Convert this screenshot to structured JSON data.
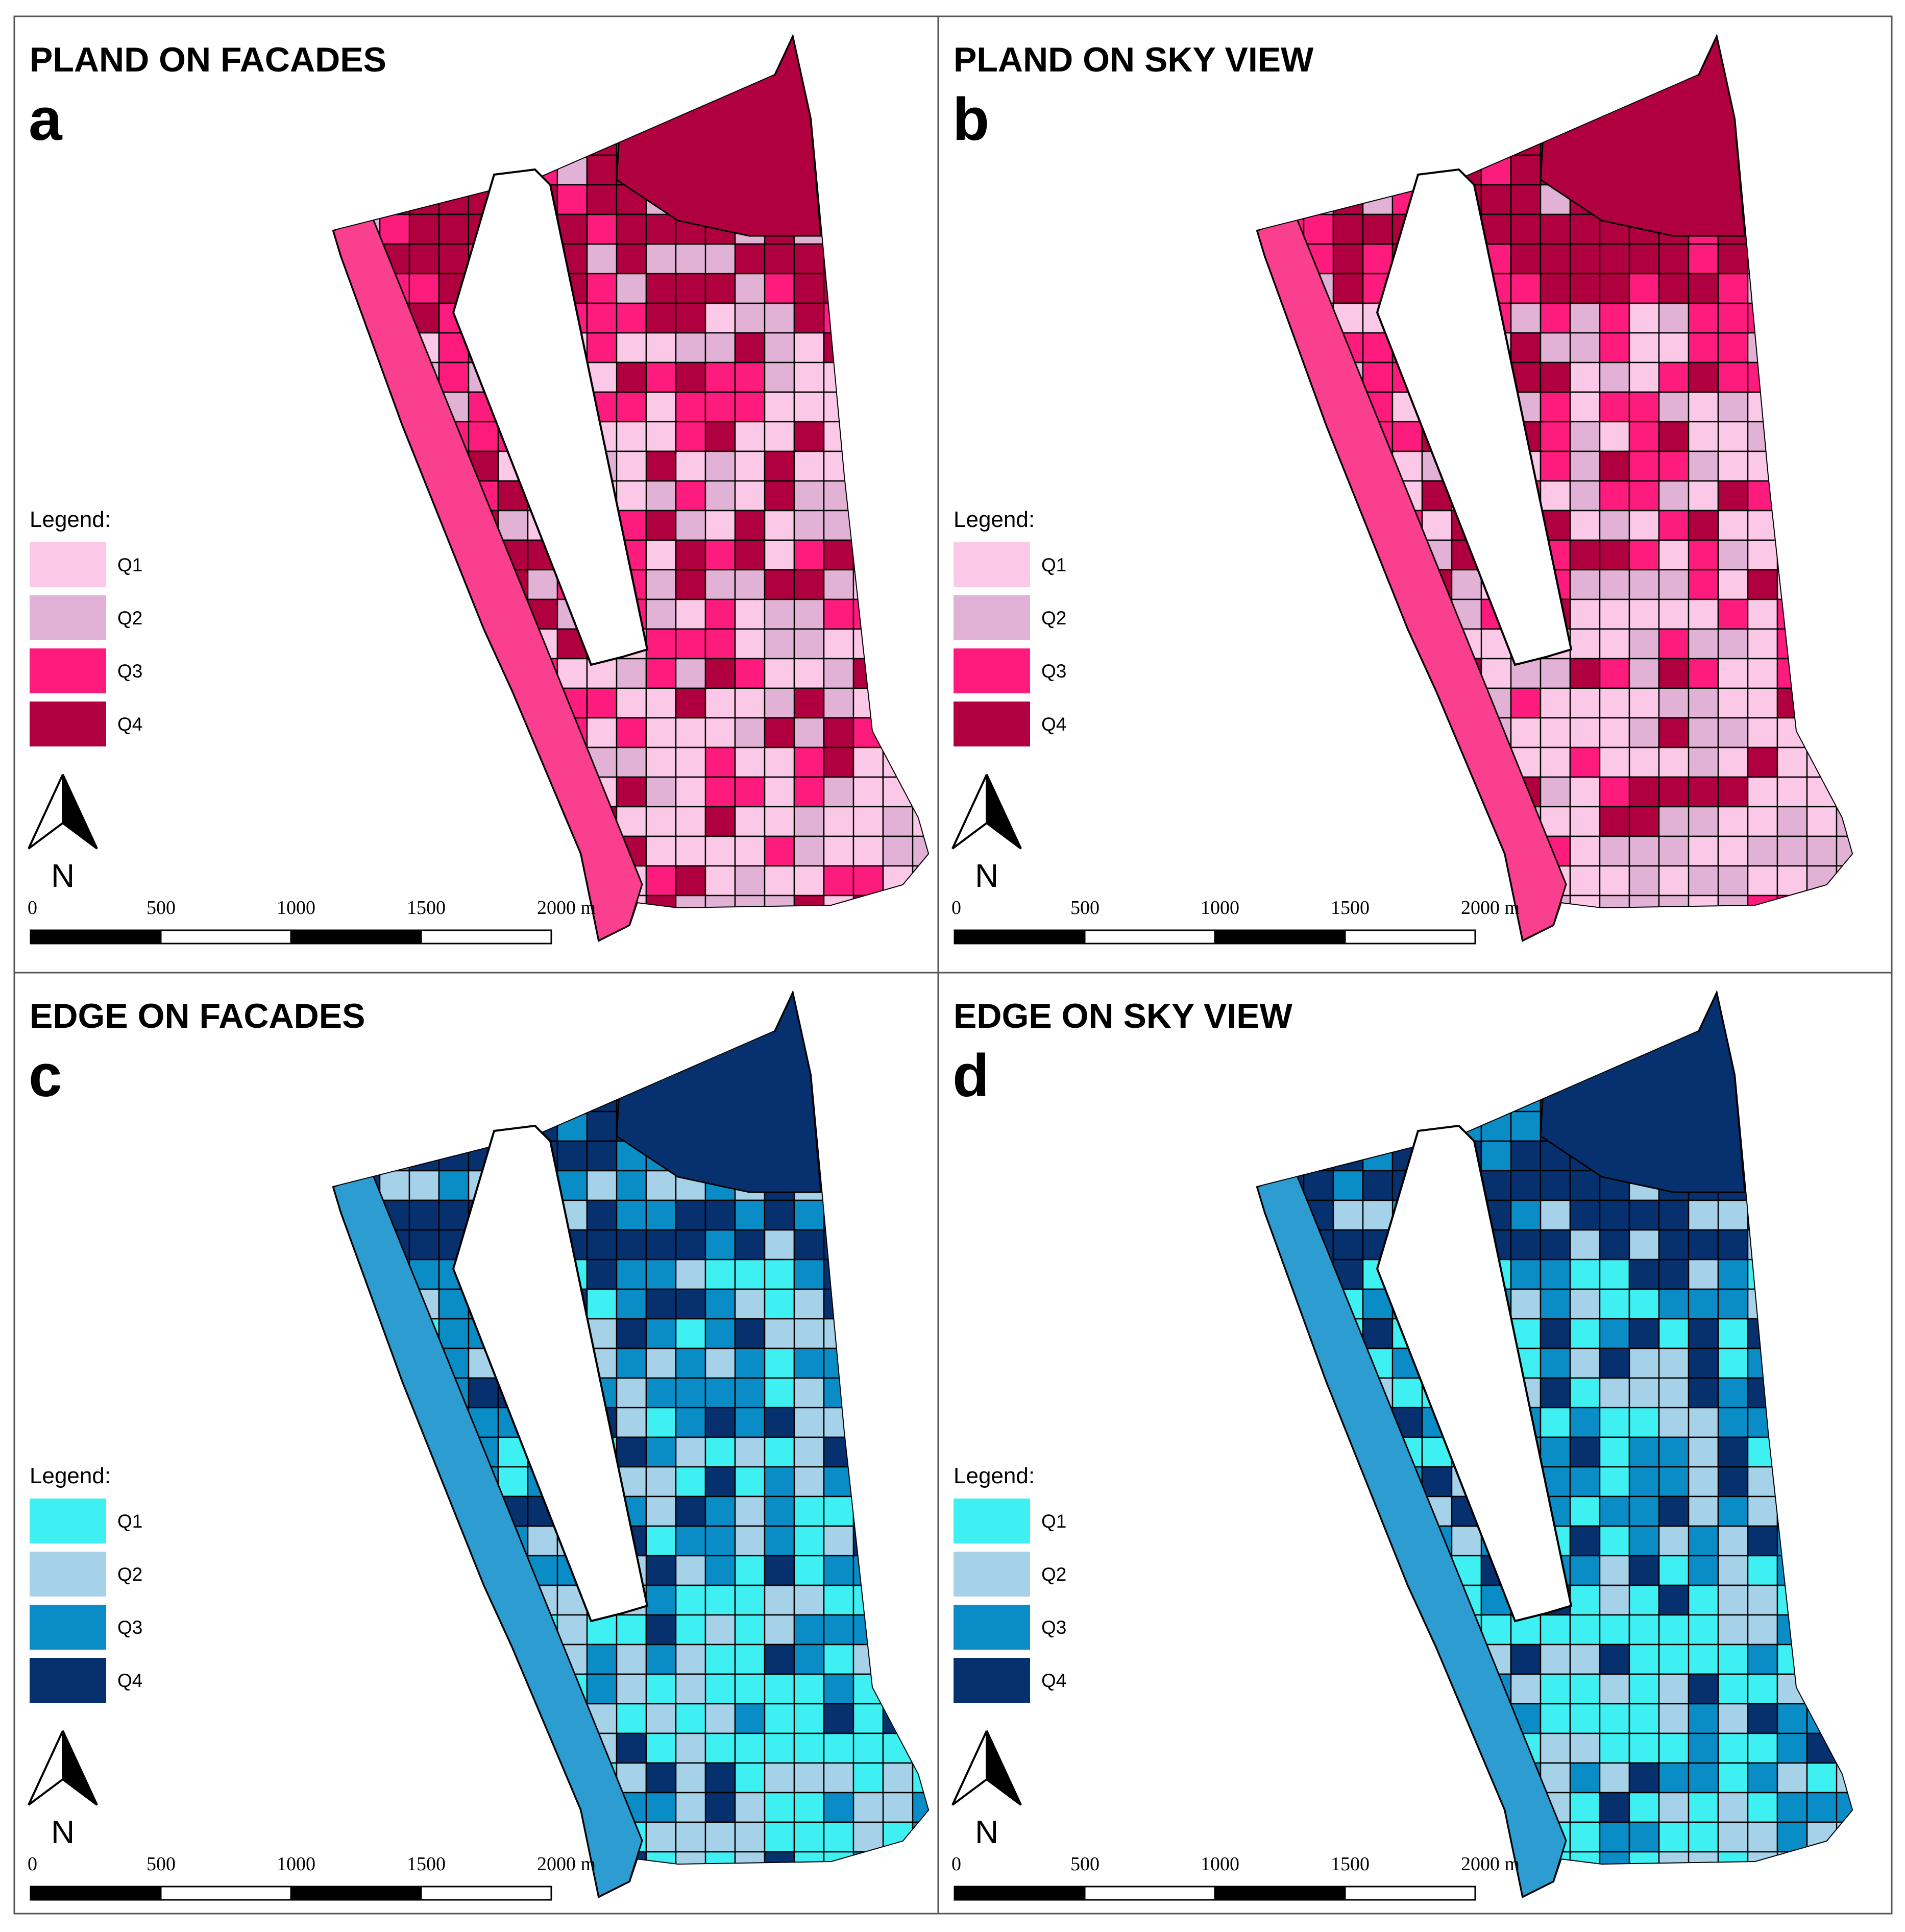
{
  "figure": {
    "panels": [
      {
        "id": "a",
        "title": "PLAND ON FACADES",
        "letter": "a",
        "legend_title": "Legend:",
        "legend": [
          {
            "label": "Q1",
            "color": "#fcc8e8"
          },
          {
            "label": "Q2",
            "color": "#e2b2d6"
          },
          {
            "label": "Q3",
            "color": "#fd1b7d"
          },
          {
            "label": "Q4",
            "color": "#b1003f"
          }
        ],
        "base_color": "#fb3f8f",
        "north_label": "N",
        "scale": {
          "ticks": [
            "0",
            "500",
            "1000",
            "1500",
            "2000 m"
          ]
        }
      },
      {
        "id": "b",
        "title": "PLAND ON SKY VIEW",
        "letter": "b",
        "legend_title": "Legend:",
        "legend": [
          {
            "label": "Q1",
            "color": "#fcc8e8"
          },
          {
            "label": "Q2",
            "color": "#e2b2d6"
          },
          {
            "label": "Q3",
            "color": "#fd1b7d"
          },
          {
            "label": "Q4",
            "color": "#b1003f"
          }
        ],
        "base_color": "#fb3f8f",
        "north_label": "N",
        "scale": {
          "ticks": [
            "0",
            "500",
            "1000",
            "1500",
            "2000 m"
          ]
        }
      },
      {
        "id": "c",
        "title": "EDGE ON FACADES",
        "letter": "c",
        "legend_title": "Legend:",
        "legend": [
          {
            "label": "Q1",
            "color": "#3ff0f3"
          },
          {
            "label": "Q2",
            "color": "#a5d1e9"
          },
          {
            "label": "Q3",
            "color": "#0a8dc6"
          },
          {
            "label": "Q4",
            "color": "#06306e"
          }
        ],
        "base_color": "#2c9cd1",
        "north_label": "N",
        "scale": {
          "ticks": [
            "0",
            "500",
            "1000",
            "1500",
            "2000 m"
          ]
        }
      },
      {
        "id": "d",
        "title": "EDGE ON SKY VIEW",
        "letter": "d",
        "legend_title": "Legend:",
        "legend": [
          {
            "label": "Q1",
            "color": "#3ff0f3"
          },
          {
            "label": "Q2",
            "color": "#a5d1e9"
          },
          {
            "label": "Q3",
            "color": "#0a8dc6"
          },
          {
            "label": "Q4",
            "color": "#06306e"
          }
        ],
        "base_color": "#2c9cd1",
        "north_label": "N",
        "scale": {
          "ticks": [
            "0",
            "500",
            "1000",
            "1500",
            "2000 m"
          ]
        }
      }
    ]
  }
}
